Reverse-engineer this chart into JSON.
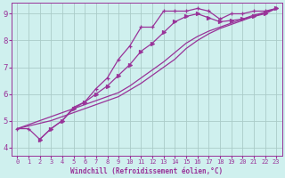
{
  "xlabel": "Windchill (Refroidissement éolien,°C)",
  "background_color": "#cff0ee",
  "grid_color": "#aaccc8",
  "line_color": "#993399",
  "xlim": [
    -0.5,
    23.5
  ],
  "ylim": [
    3.7,
    9.4
  ],
  "xticks": [
    0,
    1,
    2,
    3,
    4,
    5,
    6,
    7,
    8,
    9,
    10,
    11,
    12,
    13,
    14,
    15,
    16,
    17,
    18,
    19,
    20,
    21,
    22,
    23
  ],
  "yticks": [
    4,
    5,
    6,
    7,
    8,
    9
  ],
  "line_main": {
    "x": [
      0,
      1,
      2,
      3,
      4,
      5,
      6,
      7,
      8,
      9,
      10,
      11,
      12,
      13,
      14,
      15,
      16,
      17,
      18,
      19,
      20,
      21,
      22,
      23
    ],
    "y": [
      4.7,
      4.7,
      4.3,
      4.7,
      5.0,
      5.5,
      5.7,
      6.2,
      6.6,
      7.3,
      7.8,
      8.5,
      8.5,
      9.1,
      9.1,
      9.1,
      9.2,
      9.1,
      8.8,
      9.0,
      9.0,
      9.1,
      9.1,
      9.2
    ]
  },
  "line_straight1": {
    "x": [
      0,
      1,
      2,
      3,
      4,
      5,
      6,
      7,
      8,
      9,
      10,
      11,
      12,
      13,
      14,
      15,
      16,
      17,
      18,
      19,
      20,
      21,
      22,
      23
    ],
    "y": [
      4.7,
      4.8,
      4.9,
      5.0,
      5.15,
      5.3,
      5.45,
      5.6,
      5.75,
      5.9,
      6.15,
      6.4,
      6.7,
      7.0,
      7.3,
      7.7,
      8.0,
      8.25,
      8.45,
      8.6,
      8.75,
      8.9,
      9.05,
      9.2
    ]
  },
  "line_straight2": {
    "x": [
      0,
      1,
      2,
      3,
      4,
      5,
      6,
      7,
      8,
      9,
      10,
      11,
      12,
      13,
      14,
      15,
      16,
      17,
      18,
      19,
      20,
      21,
      22,
      23
    ],
    "y": [
      4.7,
      4.85,
      5.0,
      5.15,
      5.3,
      5.45,
      5.6,
      5.75,
      5.9,
      6.05,
      6.3,
      6.6,
      6.9,
      7.2,
      7.55,
      7.9,
      8.15,
      8.35,
      8.5,
      8.65,
      8.8,
      8.95,
      9.05,
      9.2
    ]
  },
  "line_arrow": {
    "x": [
      2,
      3,
      4,
      5,
      6,
      7,
      8,
      9,
      10,
      11,
      12,
      13,
      14,
      15,
      16,
      17,
      18,
      19,
      20,
      21,
      22,
      23
    ],
    "y": [
      4.3,
      4.7,
      5.0,
      5.45,
      5.7,
      6.0,
      6.3,
      6.7,
      7.1,
      7.6,
      7.9,
      8.3,
      8.7,
      8.9,
      9.0,
      8.85,
      8.7,
      8.75,
      8.8,
      8.9,
      9.0,
      9.2
    ]
  }
}
